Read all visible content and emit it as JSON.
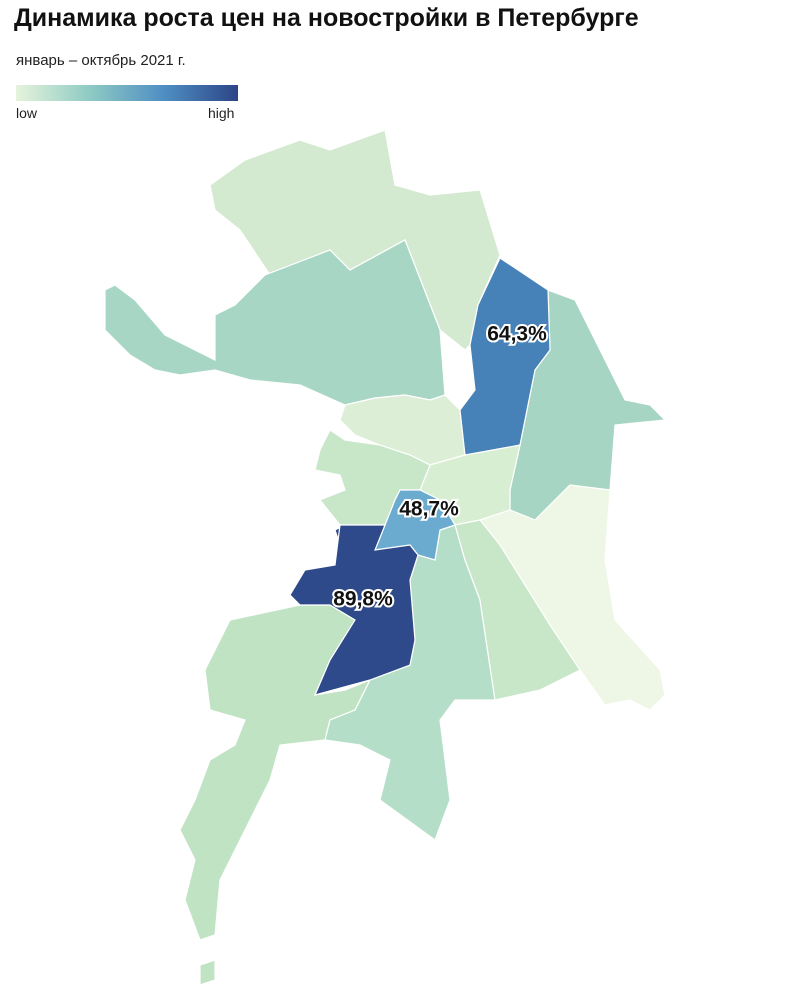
{
  "title": "Динамика роста цен на новостройки в Петербурге",
  "subtitle": "январь – октябрь 2021 г.",
  "legend": {
    "low": "low",
    "high": "high",
    "colors": [
      "#e6f4dc",
      "#8ecac3",
      "#4f8ec3",
      "#2c4587"
    ]
  },
  "regions": [
    {
      "value": 64.3,
      "value_label": "64,3%",
      "color": "#4682b8"
    },
    {
      "value": 48.7,
      "value_label": "48,7%",
      "color": "#6aabcf"
    },
    {
      "value": 89.8,
      "value_label": "89,8%",
      "color": "#2e4a8a"
    }
  ]
}
